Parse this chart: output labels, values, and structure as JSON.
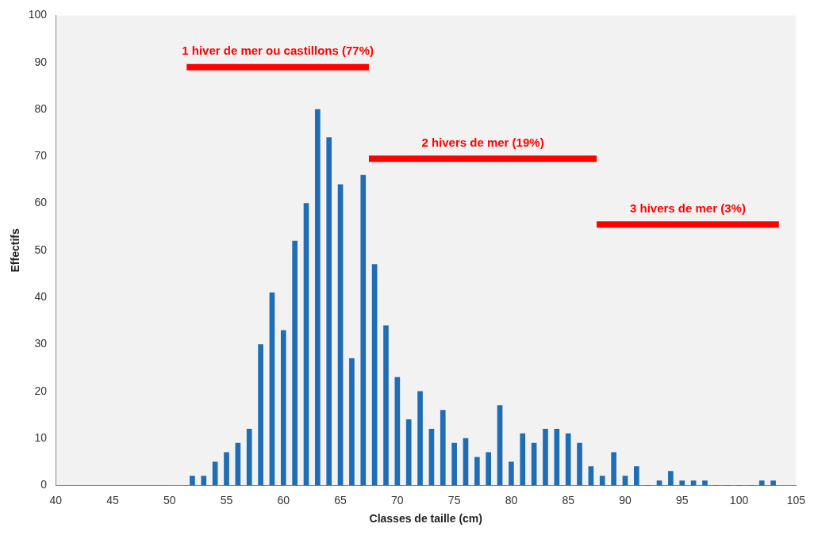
{
  "chart_data": {
    "type": "bar",
    "xlabel": "Classes de taille (cm)",
    "ylabel": "Effectifs",
    "grid": false,
    "legend": false,
    "xlim": [
      40,
      105
    ],
    "xticks": [
      40,
      45,
      50,
      55,
      60,
      65,
      70,
      75,
      80,
      85,
      90,
      95,
      100,
      105
    ],
    "ylim": [
      0,
      100
    ],
    "yticks": [
      0,
      10,
      20,
      30,
      40,
      50,
      60,
      70,
      80,
      90,
      100
    ],
    "series": [
      {
        "color": "#1f6db5",
        "x": [
          52,
          53,
          54,
          55,
          56,
          57,
          58,
          59,
          60,
          61,
          62,
          63,
          64,
          65,
          66,
          67,
          68,
          69,
          70,
          71,
          72,
          73,
          74,
          75,
          76,
          77,
          78,
          79,
          80,
          81,
          82,
          83,
          84,
          85,
          86,
          87,
          88,
          89,
          90,
          91,
          92,
          93,
          94,
          95,
          96,
          97,
          98,
          99,
          100,
          101,
          102,
          103
        ],
        "values": [
          2,
          2,
          5,
          7,
          9,
          12,
          30,
          41,
          33,
          52,
          60,
          80,
          74,
          64,
          27,
          66,
          47,
          34,
          23,
          14,
          20,
          12,
          16,
          9,
          10,
          6,
          7,
          17,
          5,
          11,
          9,
          12,
          12,
          11,
          9,
          4,
          2,
          7,
          2,
          4,
          0,
          1,
          3,
          1,
          1,
          1,
          0,
          0,
          0,
          0,
          1,
          1
        ]
      },
      {
        "type": "line",
        "name": "1 hiver de mer ou castillons (77%)",
        "color": "#ff0000",
        "x": [
          51.5,
          67.5
        ],
        "values": [
          89,
          89
        ]
      },
      {
        "type": "line",
        "name": "2 hivers de mer (19%)",
        "color": "#ff0000",
        "x": [
          67.5,
          87.5
        ],
        "values": [
          69.5,
          69.5
        ]
      },
      {
        "type": "line",
        "name": "3 hivers de mer (3%)",
        "color": "#ff0000",
        "x": [
          87.5,
          103.5
        ],
        "values": [
          55.5,
          55.5
        ]
      }
    ]
  }
}
